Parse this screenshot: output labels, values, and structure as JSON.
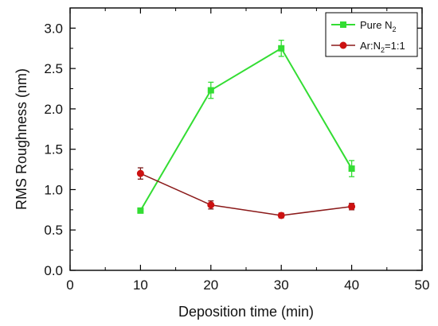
{
  "chart_data": {
    "type": "line",
    "title": "",
    "xlabel": "Deposition time (min)",
    "ylabel": "RMS Roughness (nm)",
    "xlim": [
      0,
      50
    ],
    "ylim": [
      0.0,
      3.25
    ],
    "xticks": [
      0,
      10,
      20,
      30,
      40,
      50
    ],
    "xtick_labels": [
      "0",
      "10",
      "20",
      "30",
      "40",
      "50"
    ],
    "yticks": [
      0.0,
      0.5,
      1.0,
      1.5,
      2.0,
      2.5,
      3.0
    ],
    "ytick_labels": [
      "0.0",
      "0.5",
      "1.0",
      "1.5",
      "2.0",
      "2.5",
      "3.0"
    ],
    "grid": false,
    "legend_position": "top-right",
    "legend": {
      "pure_n2": {
        "main": "Pure N",
        "sub": "2"
      },
      "ar_n2": {
        "pre": "Ar:N",
        "sub": "2",
        "post": "=1:1"
      }
    },
    "series": [
      {
        "name": "Pure N2",
        "color": "#33dd33",
        "marker": "square",
        "x": [
          10,
          20,
          30,
          40
        ],
        "y": [
          0.74,
          2.23,
          2.75,
          1.26
        ],
        "err": [
          0.03,
          0.1,
          0.1,
          0.1
        ]
      },
      {
        "name": "Ar:N2=1:1",
        "color": "#8b1a1a",
        "marker_color": "#cc1111",
        "marker": "circle",
        "x": [
          10,
          20,
          30,
          40
        ],
        "y": [
          1.2,
          0.81,
          0.68,
          0.79
        ],
        "err": [
          0.07,
          0.05,
          0.03,
          0.04
        ]
      }
    ]
  }
}
